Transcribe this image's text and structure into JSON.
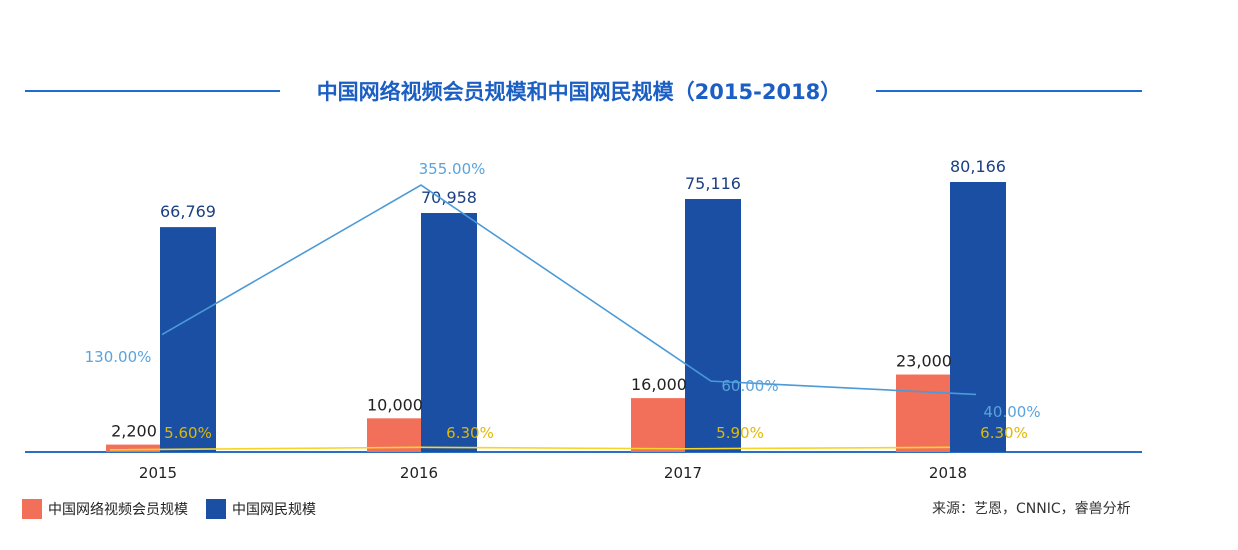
{
  "title": "中国网络视频会员规模和中国网民规模（2015-2018）",
  "source": "来源：艺恩，CNNIC，睿兽分析",
  "colors": {
    "member_bar": "#f2705a",
    "user_bar": "#1b4fa3",
    "member_growth_line": "#4a9ad8",
    "penetration_line": "#f5d52a",
    "axis": "#2a6fc1",
    "title": "#1b5fc4"
  },
  "chart_data": {
    "type": "bar",
    "title": "中国网络视频会员规模和中国网民规模（2015-2018）",
    "categories": [
      "2015",
      "2016",
      "2017",
      "2018"
    ],
    "series": [
      {
        "name": "中国网络视频会员规模",
        "type": "bar",
        "values": [
          2200,
          10000,
          16000,
          23000
        ],
        "labels": [
          "2,200",
          "10,000",
          "16,000",
          "23,000"
        ]
      },
      {
        "name": "中国网民规模",
        "type": "bar",
        "values": [
          66769,
          70958,
          75116,
          80166
        ],
        "labels": [
          "66,769",
          "70,958",
          "75,116",
          "80,166"
        ]
      },
      {
        "type": "line",
        "values": [
          130,
          355,
          60,
          40
        ],
        "labels": [
          "130.00%",
          "355.00%",
          "60.00%",
          "40.00%"
        ]
      },
      {
        "type": "line",
        "values": [
          5.6,
          6.3,
          5.9,
          6.3
        ],
        "labels": [
          "5.60%",
          "6.30%",
          "5.90%",
          "6.30%"
        ]
      }
    ],
    "xlabel": "",
    "ylabel": "",
    "grid": false,
    "legend": "bottom-left"
  }
}
